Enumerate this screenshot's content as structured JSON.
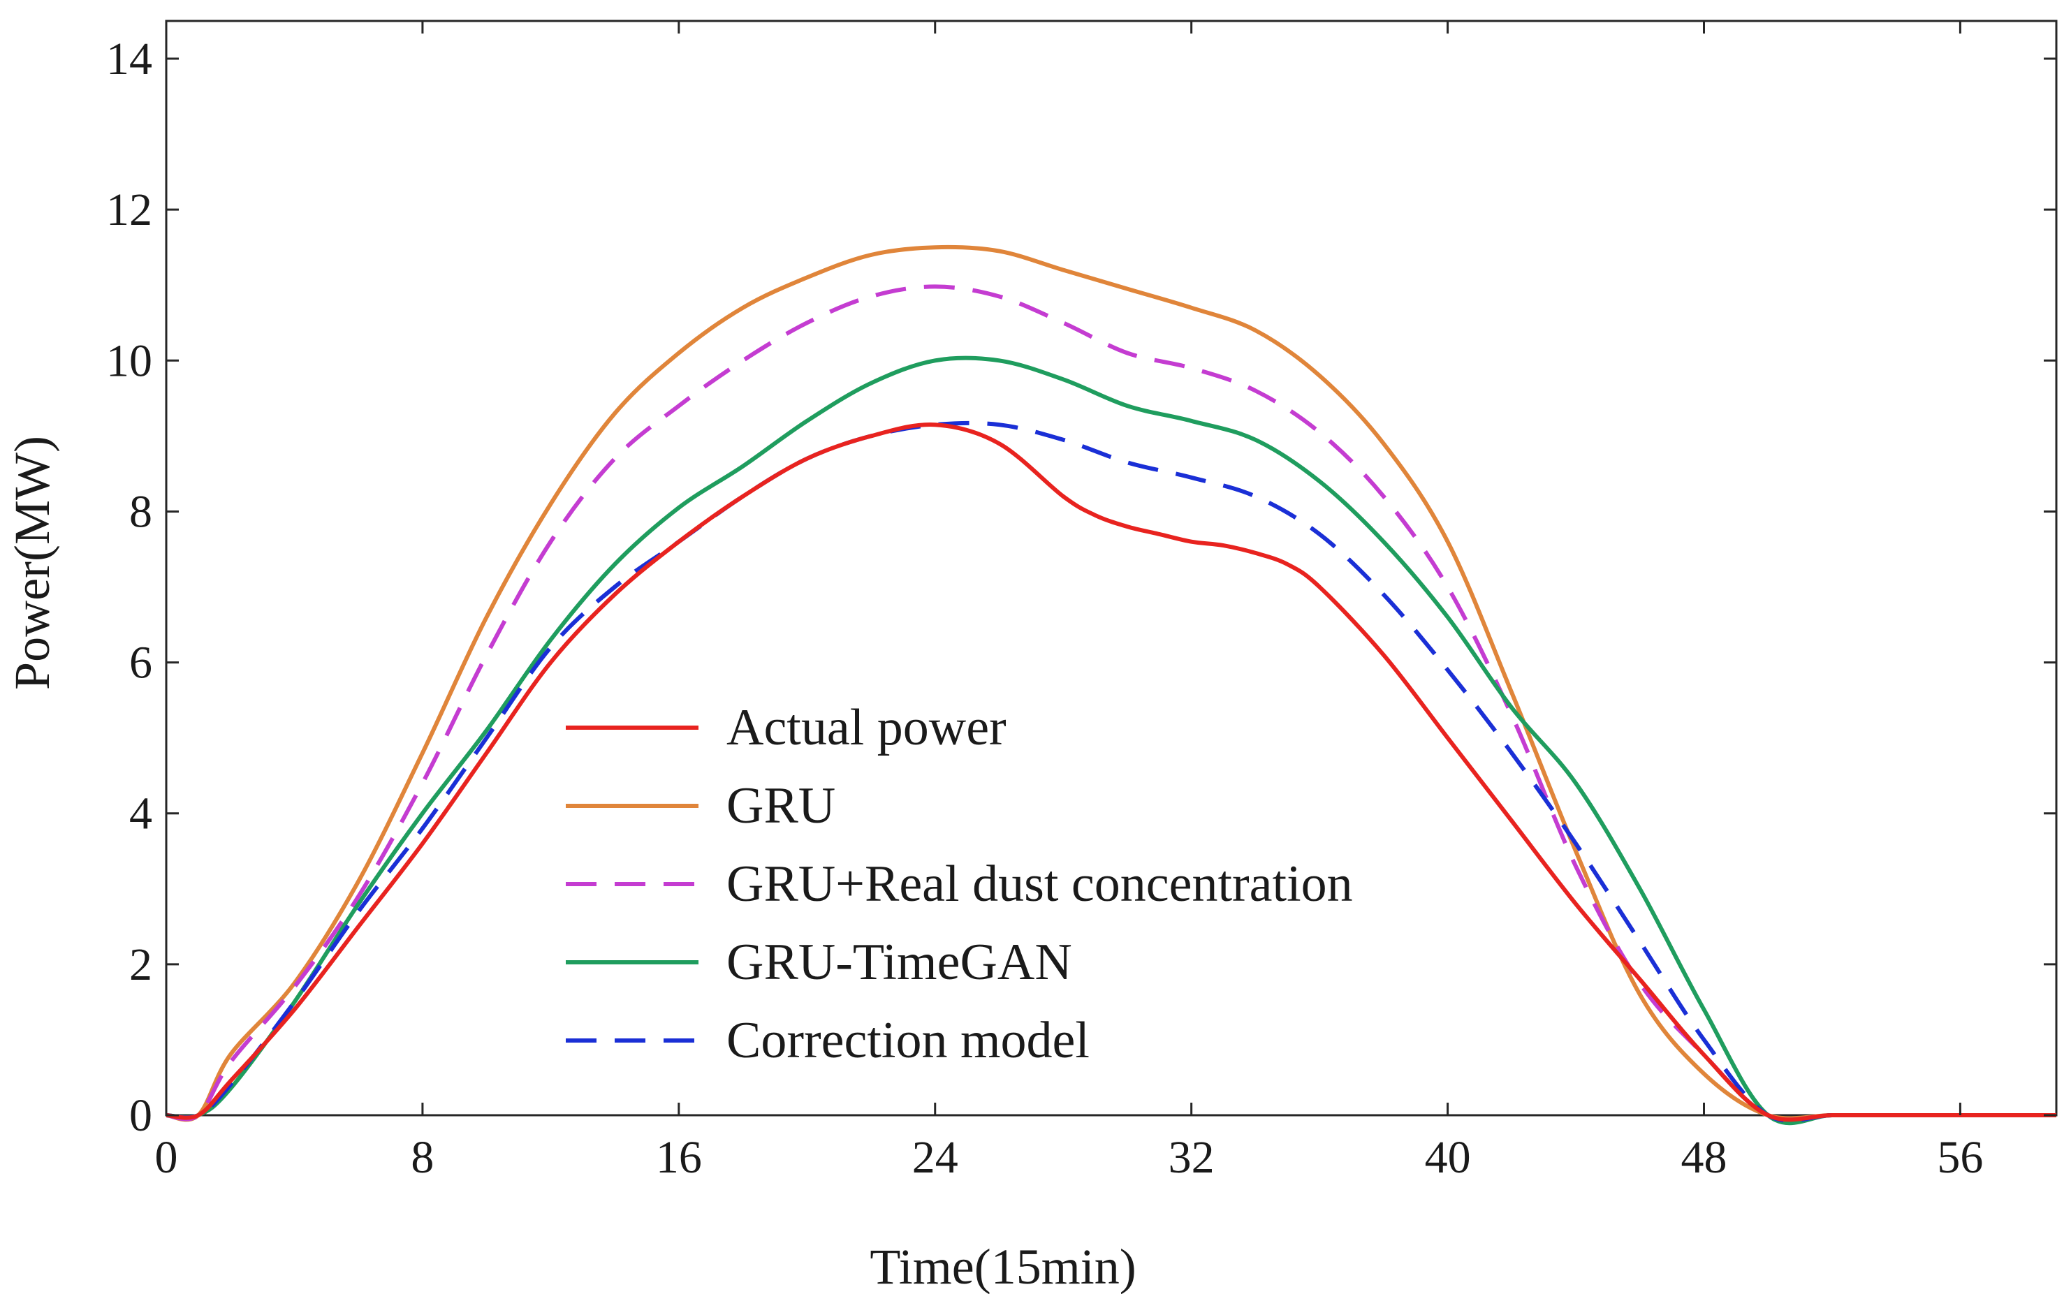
{
  "chart_data": {
    "type": "line",
    "xlabel": "Time(15min)",
    "ylabel": "Power(MW)",
    "xlim": [
      0,
      59
    ],
    "ylim": [
      0,
      14.5
    ],
    "xticks": [
      0,
      8,
      16,
      24,
      32,
      40,
      48,
      56
    ],
    "yticks": [
      0,
      2,
      4,
      6,
      8,
      10,
      12,
      14
    ],
    "grid": false,
    "legend_position": "center-left",
    "series": [
      {
        "name": "Actual power",
        "color": "#e8231f",
        "style": "solid",
        "x": [
          0,
          1,
          2,
          4,
          6,
          8,
          10,
          12,
          14,
          16,
          18,
          20,
          22,
          24,
          26,
          28,
          29,
          30,
          31,
          32,
          33,
          34,
          35,
          36,
          38,
          40,
          42,
          44,
          46,
          48,
          50,
          52,
          54,
          56,
          59
        ],
        "y": [
          0,
          0,
          0.45,
          1.4,
          2.5,
          3.6,
          4.8,
          6.0,
          6.9,
          7.6,
          8.2,
          8.7,
          9.0,
          9.15,
          8.9,
          8.2,
          7.95,
          7.8,
          7.7,
          7.6,
          7.55,
          7.45,
          7.3,
          7.0,
          6.1,
          5.0,
          3.9,
          2.8,
          1.8,
          0.8,
          0,
          0,
          0,
          0,
          0
        ]
      },
      {
        "name": "GRU",
        "color": "#e0853a",
        "style": "solid",
        "x": [
          0,
          1,
          2,
          4,
          6,
          8,
          10,
          12,
          14,
          16,
          18,
          20,
          22,
          24,
          26,
          28,
          30,
          32,
          34,
          36,
          38,
          40,
          42,
          44,
          46,
          48,
          50,
          52,
          54,
          56,
          59
        ],
        "y": [
          0,
          0,
          0.8,
          1.75,
          3.1,
          4.8,
          6.6,
          8.1,
          9.3,
          10.1,
          10.7,
          11.1,
          11.4,
          11.5,
          11.45,
          11.2,
          10.95,
          10.7,
          10.4,
          9.8,
          8.9,
          7.6,
          5.6,
          3.5,
          1.6,
          0.55,
          0,
          0,
          0,
          0,
          0
        ]
      },
      {
        "name": "GRU+Real dust concentration",
        "color": "#c43cd1",
        "style": "dashed",
        "x": [
          0,
          1,
          2,
          4,
          6,
          8,
          10,
          12,
          14,
          16,
          18,
          20,
          22,
          24,
          26,
          28,
          30,
          32,
          34,
          36,
          38,
          40,
          42,
          44,
          46,
          48,
          50,
          52,
          54,
          56,
          59
        ],
        "y": [
          0,
          0,
          0.7,
          1.7,
          2.9,
          4.4,
          6.1,
          7.6,
          8.7,
          9.4,
          10.0,
          10.5,
          10.85,
          10.98,
          10.85,
          10.5,
          10.1,
          9.9,
          9.6,
          9.05,
          8.2,
          7.0,
          5.3,
          3.3,
          1.75,
          0.8,
          0,
          0,
          0,
          0,
          0
        ]
      },
      {
        "name": "GRU-TimeGAN",
        "color": "#1f9d5e",
        "style": "solid",
        "x": [
          0,
          1,
          2,
          4,
          6,
          8,
          10,
          12,
          14,
          16,
          18,
          20,
          22,
          24,
          26,
          28,
          30,
          32,
          34,
          36,
          38,
          40,
          42,
          44,
          46,
          48,
          50,
          52,
          54,
          56,
          59
        ],
        "y": [
          0,
          0,
          0.35,
          1.5,
          2.8,
          4.0,
          5.1,
          6.3,
          7.3,
          8.05,
          8.6,
          9.2,
          9.7,
          10.0,
          10.0,
          9.75,
          9.4,
          9.2,
          8.95,
          8.4,
          7.6,
          6.6,
          5.4,
          4.4,
          3.0,
          1.4,
          0,
          0,
          0,
          0,
          0
        ]
      },
      {
        "name": "Correction model",
        "color": "#1a2fd6",
        "style": "dashed",
        "x": [
          0,
          1,
          2,
          4,
          6,
          8,
          10,
          12,
          14,
          16,
          18,
          20,
          22,
          24,
          26,
          28,
          30,
          32,
          34,
          36,
          38,
          40,
          42,
          44,
          46,
          48,
          50,
          52,
          54,
          56,
          59
        ],
        "y": [
          0,
          0,
          0.4,
          1.5,
          2.7,
          3.8,
          5.0,
          6.2,
          7.0,
          7.6,
          8.2,
          8.7,
          9.0,
          9.15,
          9.15,
          8.95,
          8.65,
          8.45,
          8.2,
          7.7,
          6.9,
          5.9,
          4.8,
          3.6,
          2.3,
          1.0,
          0,
          0,
          0,
          0,
          0
        ]
      }
    ]
  }
}
